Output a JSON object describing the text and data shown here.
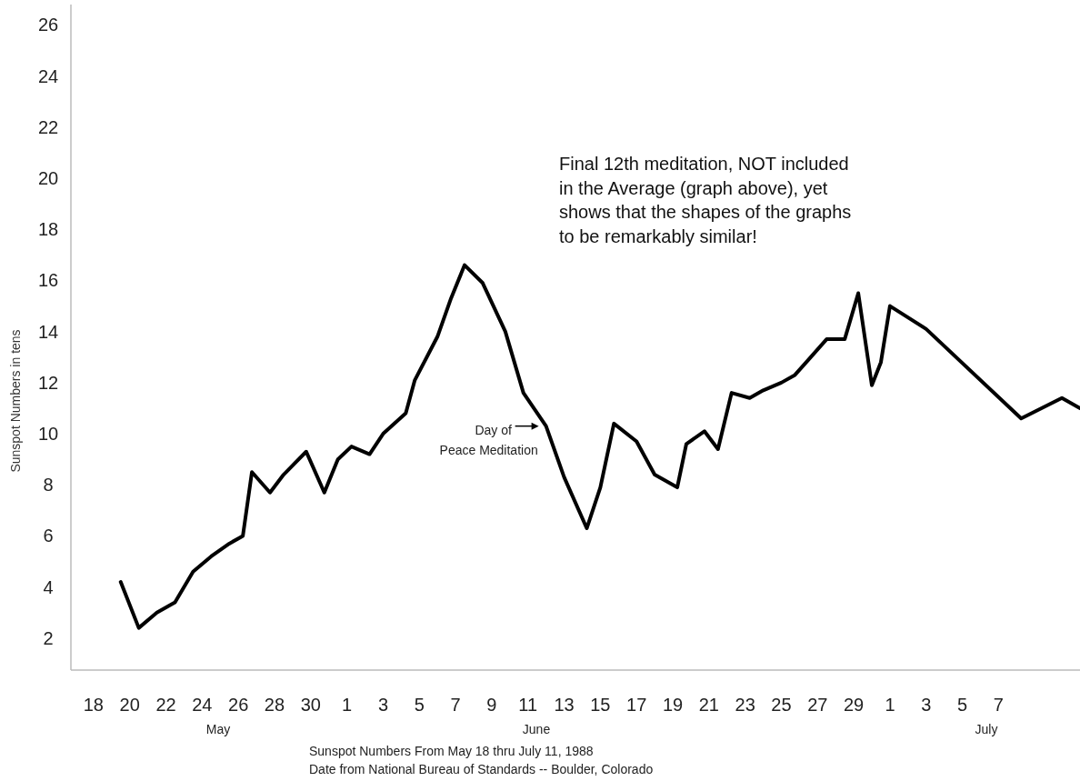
{
  "chart_data": {
    "type": "line",
    "ylabel": "Sunspot Numbers in tens",
    "xlabel": "Sunspot Numbers From May 18 thru July 11, 1988",
    "x": [
      "1988-05-19T12:00",
      "1988-05-20T12:00",
      "1988-05-21T12:00",
      "1988-05-22T12:00",
      "1988-05-23T12:00",
      "1988-05-24T12:00",
      "1988-05-25T12:00",
      "1988-05-26T06:00",
      "1988-05-26T18:00",
      "1988-05-27T18:00",
      "1988-05-28T12:00",
      "1988-05-29T18:00",
      "1988-05-30T18:00",
      "1988-05-31T12:00",
      "1988-06-01T06:00",
      "1988-06-02T06:00",
      "1988-06-03T00:00",
      "1988-06-04T06:00",
      "1988-06-04T18:00",
      "1988-06-06T00:00",
      "1988-06-06T18:00",
      "1988-06-07T12:00",
      "1988-06-08T12:00",
      "1988-06-09T18:00",
      "1988-06-10T18:00",
      "1988-06-12T00:00",
      "1988-06-13T00:00",
      "1988-06-14T06:00",
      "1988-06-15T00:00",
      "1988-06-15T18:00",
      "1988-06-17T00:00",
      "1988-06-18T00:00",
      "1988-06-19T06:00",
      "1988-06-19T18:00",
      "1988-06-20T18:00",
      "1988-06-21T12:00",
      "1988-06-22T06:00",
      "1988-06-23T06:00",
      "1988-06-24T00:00",
      "1988-06-25T00:00",
      "1988-06-25T18:00",
      "1988-06-26T12:00",
      "1988-06-27T12:00",
      "1988-06-28T12:00",
      "1988-06-29T06:00",
      "1988-06-30T00:00",
      "1988-06-30T12:00",
      "1988-07-01T00:00",
      "1988-07-03T00:00",
      "1988-07-08T06:00",
      "1988-07-10T12:00",
      "1988-07-11T12:00"
    ],
    "series": [
      {
        "color": "#000000",
        "values": [
          4.2,
          2.4,
          3.0,
          3.4,
          4.6,
          5.2,
          5.7,
          6.0,
          8.5,
          7.7,
          8.4,
          9.3,
          7.7,
          9.0,
          9.5,
          9.2,
          10.0,
          10.8,
          12.1,
          13.8,
          15.3,
          16.6,
          15.9,
          14.0,
          11.6,
          10.3,
          8.3,
          6.3,
          7.9,
          10.4,
          9.7,
          8.4,
          7.9,
          9.6,
          10.1,
          9.4,
          11.6,
          11.4,
          11.7,
          12.0,
          12.3,
          12.9,
          13.7,
          13.7,
          15.5,
          11.9,
          12.8,
          15.0,
          14.1,
          10.6,
          11.4,
          11.0
        ]
      }
    ],
    "xlim": [
      "1988-05-16T18:00",
      "1988-07-11T12:00"
    ],
    "ylim": [
      0.75,
      26.8
    ],
    "xticks": [
      {
        "value": "1988-05-18",
        "label": "18"
      },
      {
        "value": "1988-05-20",
        "label": "20"
      },
      {
        "value": "1988-05-22",
        "label": "22"
      },
      {
        "value": "1988-05-24",
        "label": "24"
      },
      {
        "value": "1988-05-26",
        "label": "26"
      },
      {
        "value": "1988-05-28",
        "label": "28"
      },
      {
        "value": "1988-05-30",
        "label": "30"
      },
      {
        "value": "1988-06-01",
        "label": "1"
      },
      {
        "value": "1988-06-03",
        "label": "3"
      },
      {
        "value": "1988-06-05",
        "label": "5"
      },
      {
        "value": "1988-06-07",
        "label": "7"
      },
      {
        "value": "1988-06-09",
        "label": "9"
      },
      {
        "value": "1988-06-11",
        "label": "11"
      },
      {
        "value": "1988-06-13",
        "label": "13"
      },
      {
        "value": "1988-06-15",
        "label": "15"
      },
      {
        "value": "1988-06-17",
        "label": "17"
      },
      {
        "value": "1988-06-19",
        "label": "19"
      },
      {
        "value": "1988-06-21",
        "label": "21"
      },
      {
        "value": "1988-06-23",
        "label": "23"
      },
      {
        "value": "1988-06-25",
        "label": "25"
      },
      {
        "value": "1988-06-27",
        "label": "27"
      },
      {
        "value": "1988-06-29",
        "label": "29"
      },
      {
        "value": "1988-07-01",
        "label": "1"
      },
      {
        "value": "1988-07-03",
        "label": "3"
      },
      {
        "value": "1988-07-05",
        "label": "5"
      },
      {
        "value": "1988-07-07",
        "label": "7"
      }
    ],
    "yticks": [
      2,
      4,
      6,
      8,
      10,
      12,
      14,
      16,
      18,
      20,
      22,
      24,
      26
    ],
    "marker": "none",
    "line_style": "solid",
    "annotations": [
      "Final 12th meditation, NOT included\nin the Average (graph above), yet\nshows that the shapes of the graphs\nto be remarkably similar!",
      "Date from National Bureau of Standards -- Boulder, Colorado",
      "May",
      "June",
      "July",
      {
        "text": "Day of\nPeace Meditation",
        "x": "1988-06-12T00:00",
        "y": 10.3
      }
    ]
  }
}
